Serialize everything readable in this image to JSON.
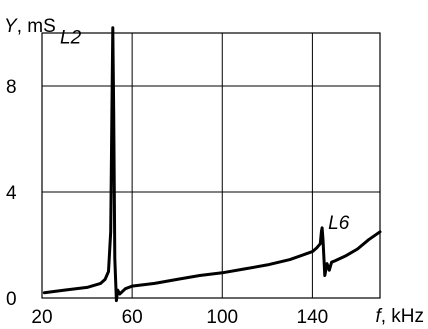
{
  "chart_data": {
    "type": "line",
    "y_axis_label": {
      "symbol": "Y",
      "unit": ", mS"
    },
    "x_axis_label": {
      "symbol": "f",
      "unit": ", kHz"
    },
    "xlim": [
      20,
      170
    ],
    "ylim": [
      0,
      10
    ],
    "grid": true,
    "x_ticks": [
      {
        "value": 20,
        "label": "20"
      },
      {
        "value": 60,
        "label": "60"
      },
      {
        "value": 100,
        "label": "100"
      },
      {
        "value": 140,
        "label": "140"
      }
    ],
    "y_ticks": [
      {
        "value": 0,
        "label": "0"
      },
      {
        "value": 4,
        "label": "4"
      },
      {
        "value": 8,
        "label": "8"
      }
    ],
    "annotations": [
      {
        "text": "L2",
        "x": 28,
        "y": 9.6
      },
      {
        "text": "L6",
        "x": 147,
        "y": 2.6
      }
    ],
    "series": [
      {
        "x": [
          21,
          30,
          40,
          46,
          48,
          49.5,
          50.5,
          51,
          51.4,
          51.8,
          52.3,
          53,
          53.6,
          54.5,
          57,
          60,
          70,
          80,
          90,
          100,
          110,
          120,
          130,
          140,
          142,
          143.5,
          144,
          144.3,
          144.7,
          145.5,
          146.5,
          147.5,
          148.5,
          150,
          155,
          160,
          165,
          170
        ],
        "y": [
          0.2,
          0.3,
          0.4,
          0.55,
          0.7,
          1.0,
          2.5,
          7.0,
          10.2,
          7.0,
          1.5,
          -0.1,
          0.3,
          0.15,
          0.35,
          0.45,
          0.55,
          0.7,
          0.85,
          0.95,
          1.1,
          1.25,
          1.45,
          1.75,
          1.9,
          2.05,
          2.5,
          2.65,
          2.2,
          0.85,
          1.3,
          1.05,
          1.35,
          1.4,
          1.6,
          1.85,
          2.2,
          2.5
        ]
      }
    ]
  }
}
